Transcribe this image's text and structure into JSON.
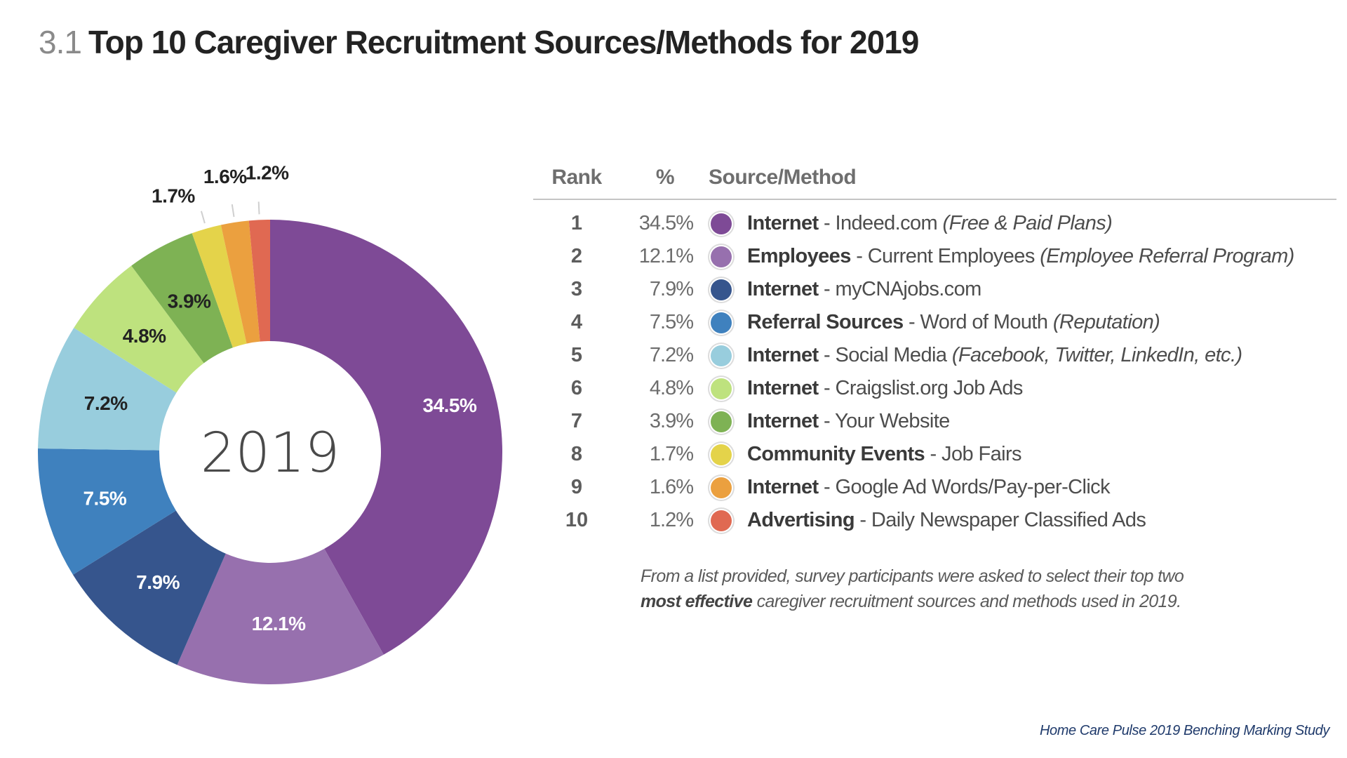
{
  "title": {
    "number": "3.1",
    "text": "Top 10 Caregiver Recruitment Sources/Methods for 2019"
  },
  "table": {
    "headers": {
      "rank": "Rank",
      "pct": "%",
      "source": "Source/Method"
    },
    "rows": [
      {
        "rank": "1",
        "pct": "34.5%",
        "color": "#7E4A96",
        "category": "Internet",
        "sep": " - ",
        "detail": "Indeed.com ",
        "note": "(Free & Paid Plans)"
      },
      {
        "rank": "2",
        "pct": "12.1%",
        "color": "#9770AE",
        "category": "Employees",
        "sep": " - ",
        "detail": "Current Employees ",
        "note": "(Employee Referral Program)"
      },
      {
        "rank": "3",
        "pct": "7.9%",
        "color": "#36558D",
        "category": "Internet",
        "sep": " - ",
        "detail": "myCNAjobs.com",
        "note": ""
      },
      {
        "rank": "4",
        "pct": "7.5%",
        "color": "#3F81BE",
        "category": "Referral Sources",
        "sep": " - ",
        "detail": "Word of Mouth ",
        "note": "(Reputation)"
      },
      {
        "rank": "5",
        "pct": "7.2%",
        "color": "#98CDDD",
        "category": "Internet",
        "sep": " - ",
        "detail": "Social Media ",
        "note": "(Facebook, Twitter, LinkedIn, etc.)"
      },
      {
        "rank": "6",
        "pct": "4.8%",
        "color": "#BEE27E",
        "category": "Internet",
        "sep": " - ",
        "detail": "Craigslist.org Job Ads",
        "note": ""
      },
      {
        "rank": "7",
        "pct": "3.9%",
        "color": "#7EB254",
        "category": "Internet",
        "sep": " - ",
        "detail": "Your Website",
        "note": ""
      },
      {
        "rank": "8",
        "pct": "1.7%",
        "color": "#E4D34A",
        "category": "Community Events",
        "sep": " - ",
        "detail": "Job Fairs",
        "note": ""
      },
      {
        "rank": "9",
        "pct": "1.6%",
        "color": "#EBA03F",
        "category": "Internet",
        "sep": " - ",
        "detail": "Google Ad Words/Pay-per-Click",
        "note": ""
      },
      {
        "rank": "10",
        "pct": "1.2%",
        "color": "#E06952",
        "category": "Advertising",
        "sep": " - ",
        "detail": "Daily Newspaper Classified Ads",
        "note": ""
      }
    ]
  },
  "footnote": {
    "line1": "From a list provided, survey participants were asked to select their top two",
    "line2_bold": "most effective",
    "line2_rest": " caregiver recruitment sources and methods used in 2019."
  },
  "source_credit": "Home Care Pulse 2019 Benching Marking Study",
  "chart_data": {
    "type": "pie",
    "variant": "donut",
    "title": "Top 10 Caregiver Recruitment Sources/Methods for 2019",
    "center_label": "2019",
    "start": "top, clockwise",
    "normalized": true,
    "categories": [
      "Internet - Indeed.com (Free & Paid Plans)",
      "Employees - Current Employees (Employee Referral Program)",
      "Internet - myCNAjobs.com",
      "Referral Sources - Word of Mouth (Reputation)",
      "Internet - Social Media (Facebook, Twitter, LinkedIn, etc.)",
      "Internet - Craigslist.org Job Ads",
      "Internet - Your Website",
      "Community Events - Job Fairs",
      "Internet - Google Ad Words/Pay-per-Click",
      "Advertising - Daily Newspaper Classified Ads"
    ],
    "values": [
      34.5,
      12.1,
      7.9,
      7.5,
      7.2,
      4.8,
      3.9,
      1.7,
      1.6,
      1.2
    ],
    "labels": [
      "34.5%",
      "12.1%",
      "7.9%",
      "7.5%",
      "7.2%",
      "4.8%",
      "3.9%",
      "1.7%",
      "1.6%",
      "1.2%"
    ],
    "colors": [
      "#7E4A96",
      "#9770AE",
      "#36558D",
      "#3F81BE",
      "#98CDDD",
      "#BEE27E",
      "#7EB254",
      "#E4D34A",
      "#EBA03F",
      "#E06952"
    ],
    "label_colors": [
      "#ffffff",
      "#ffffff",
      "#ffffff",
      "#ffffff",
      "#222222",
      "#222222",
      "#222222",
      "#222222",
      "#222222",
      "#222222"
    ],
    "outside_labels": [
      false,
      false,
      false,
      false,
      false,
      false,
      false,
      true,
      true,
      true
    ],
    "legend": "right (ranked table)"
  }
}
